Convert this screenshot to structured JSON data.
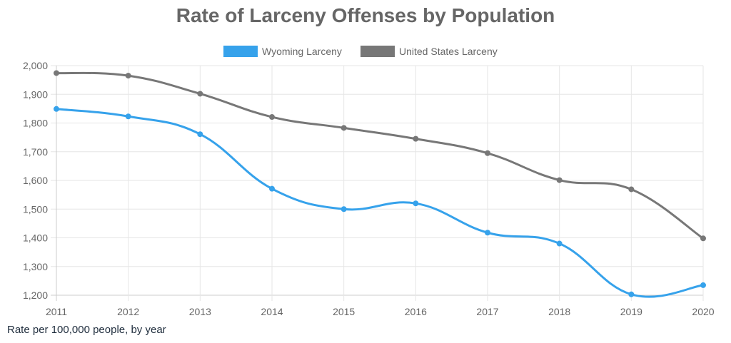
{
  "chart_data": {
    "type": "line",
    "title": "Rate of Larceny Offenses by Population",
    "xlabel": "",
    "ylabel": "",
    "x": [
      "2011",
      "2012",
      "2013",
      "2014",
      "2015",
      "2016",
      "2017",
      "2018",
      "2019",
      "2020"
    ],
    "series": [
      {
        "name": "Wyoming Larceny",
        "color": "#36a2eb",
        "values": [
          1849,
          1823,
          1761,
          1571,
          1500,
          1520,
          1418,
          1380,
          1203,
          1235
        ]
      },
      {
        "name": "United States Larceny",
        "color": "#777777",
        "values": [
          1974,
          1965,
          1902,
          1821,
          1783,
          1745,
          1695,
          1601,
          1569,
          1398
        ]
      }
    ],
    "ylim": [
      1200,
      2000
    ],
    "yticks": [
      "1,200",
      "1,300",
      "1,400",
      "1,500",
      "1,600",
      "1,700",
      "1,800",
      "1,900",
      "2,000"
    ],
    "grid": true,
    "legend_position": "top-center",
    "curve": "smooth"
  },
  "caption": "Rate per 100,000 people, by year"
}
